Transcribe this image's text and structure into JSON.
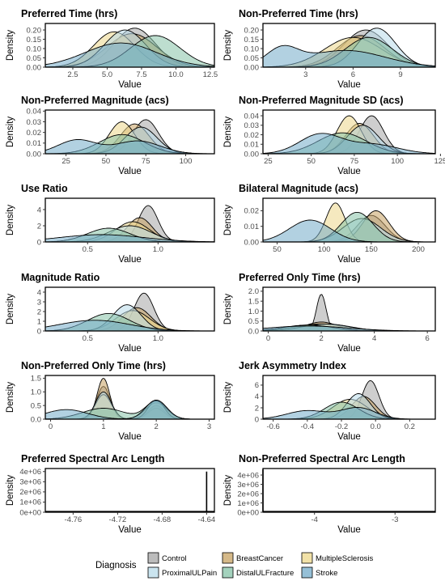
{
  "figure": {
    "legend": {
      "title": "Diagnosis",
      "placement": "bottom",
      "entries": [
        {
          "name": "Control",
          "color": "#a6a6a6"
        },
        {
          "name": "BreastCancer",
          "color": "#c7a161"
        },
        {
          "name": "MultipleSclerosis",
          "color": "#ecd78a"
        },
        {
          "name": "ProximalULPain",
          "color": "#b8dbea"
        },
        {
          "name": "DistalULFracture",
          "color": "#86c3a7"
        },
        {
          "name": "Stroke",
          "color": "#73abc9"
        }
      ]
    }
  },
  "chart_data": [
    {
      "type": "area",
      "title": "Preferred Time (hrs)",
      "xlabel": "Value",
      "ylabel": "Density",
      "xlim": [
        0.5,
        12.8
      ],
      "ylim": [
        0,
        0.235
      ],
      "xticks": [
        2.5,
        5.0,
        7.5,
        10.0,
        12.5
      ],
      "xtick_labels": [
        "2.5",
        "5.0",
        "7.5",
        "10.0",
        "12.5"
      ],
      "yticks": [
        0,
        0.05,
        0.1,
        0.15,
        0.2
      ],
      "ytick_labels": [
        "0.00",
        "0.05",
        "0.10",
        "0.15",
        "0.20"
      ],
      "series": [
        {
          "name": "Control",
          "peaks": [
            [
              7.0,
              0.21,
              1.5
            ]
          ]
        },
        {
          "name": "BreastCancer",
          "peaks": [
            [
              6.8,
              0.18,
              1.8
            ]
          ]
        },
        {
          "name": "MultipleSclerosis",
          "peaks": [
            [
              5.5,
              0.19,
              1.5
            ]
          ]
        },
        {
          "name": "ProximalULPain",
          "peaks": [
            [
              6.3,
              0.2,
              1.5
            ]
          ]
        },
        {
          "name": "DistalULFracture",
          "peaks": [
            [
              8.5,
              0.17,
              1.8
            ]
          ]
        },
        {
          "name": "Stroke",
          "peaks": [
            [
              6.0,
              0.13,
              2.6
            ]
          ]
        }
      ]
    },
    {
      "type": "area",
      "title": "Non-Preferred Time (hrs)",
      "xlabel": "Value",
      "ylabel": "Density",
      "xlim": [
        0.3,
        11.2
      ],
      "ylim": [
        0,
        0.235
      ],
      "xticks": [
        3,
        6,
        9
      ],
      "xtick_labels": [
        "3",
        "6",
        "9"
      ],
      "yticks": [
        0,
        0.05,
        0.1,
        0.15,
        0.2
      ],
      "ytick_labels": [
        "0.00",
        "0.05",
        "0.10",
        "0.15",
        "0.20"
      ],
      "series": [
        {
          "name": "Control",
          "peaks": [
            [
              6.8,
              0.2,
              1.4
            ]
          ]
        },
        {
          "name": "BreastCancer",
          "peaks": [
            [
              6.5,
              0.17,
              1.5
            ]
          ]
        },
        {
          "name": "MultipleSclerosis",
          "peaks": [
            [
              6.0,
              0.16,
              1.8
            ]
          ]
        },
        {
          "name": "ProximalULPain",
          "peaks": [
            [
              7.5,
              0.21,
              1.2
            ]
          ]
        },
        {
          "name": "DistalULFracture",
          "peaks": [
            [
              7.0,
              0.16,
              1.5
            ]
          ]
        },
        {
          "name": "Stroke",
          "peaks": [
            [
              1.5,
              0.09,
              1.0
            ],
            [
              5.5,
              0.09,
              2.5
            ]
          ]
        }
      ]
    },
    {
      "type": "area",
      "title": "Non-Preferred Magnitude (acs)",
      "xlabel": "Value",
      "ylabel": "Density",
      "xlim": [
        12,
        118
      ],
      "ylim": [
        0,
        0.041
      ],
      "xticks": [
        25,
        50,
        75,
        100
      ],
      "xtick_labels": [
        "25",
        "50",
        "75",
        "100"
      ],
      "yticks": [
        0,
        0.01,
        0.02,
        0.03,
        0.04
      ],
      "ytick_labels": [
        "0.00",
        "0.01",
        "0.02",
        "0.03",
        "0.04"
      ],
      "series": [
        {
          "name": "Control",
          "peaks": [
            [
              75,
              0.032,
              8
            ]
          ]
        },
        {
          "name": "BreastCancer",
          "peaks": [
            [
              68,
              0.028,
              9
            ]
          ]
        },
        {
          "name": "MultipleSclerosis",
          "peaks": [
            [
              60,
              0.03,
              8
            ]
          ]
        },
        {
          "name": "ProximalULPain",
          "peaks": [
            [
              72,
              0.025,
              10
            ]
          ]
        },
        {
          "name": "DistalULFracture",
          "peaks": [
            [
              60,
              0.018,
              14
            ]
          ]
        },
        {
          "name": "Stroke",
          "peaks": [
            [
              32,
              0.013,
              12
            ],
            [
              70,
              0.012,
              14
            ]
          ]
        }
      ]
    },
    {
      "type": "area",
      "title": "Non-Preferred Magnitude SD (acs)",
      "xlabel": "Value",
      "ylabel": "Density",
      "xlim": [
        22,
        122
      ],
      "ylim": [
        0,
        0.046
      ],
      "xticks": [
        25,
        50,
        75,
        100,
        125
      ],
      "xtick_labels": [
        "25",
        "50",
        "75",
        "100",
        "125"
      ],
      "yticks": [
        0,
        0.01,
        0.02,
        0.03,
        0.04
      ],
      "ytick_labels": [
        "0.00",
        "0.01",
        "0.02",
        "0.03",
        "0.04"
      ],
      "series": [
        {
          "name": "Control",
          "peaks": [
            [
              85,
              0.04,
              7
            ]
          ]
        },
        {
          "name": "BreastCancer",
          "peaks": [
            [
              78,
              0.032,
              8
            ]
          ]
        },
        {
          "name": "MultipleSclerosis",
          "peaks": [
            [
              72,
              0.04,
              7
            ]
          ]
        },
        {
          "name": "ProximalULPain",
          "peaks": [
            [
              80,
              0.03,
              9
            ]
          ]
        },
        {
          "name": "DistalULFracture",
          "peaks": [
            [
              68,
              0.022,
              14
            ]
          ]
        },
        {
          "name": "Stroke",
          "peaks": [
            [
              55,
              0.02,
              12
            ],
            [
              85,
              0.01,
              15
            ]
          ]
        }
      ]
    },
    {
      "type": "area",
      "title": "Use Ratio",
      "xlabel": "Value",
      "ylabel": "Density",
      "xlim": [
        0.2,
        1.4
      ],
      "ylim": [
        0,
        5.4
      ],
      "xticks": [
        0.5,
        1.0
      ],
      "xtick_labels": [
        "0.5",
        "1.0"
      ],
      "yticks": [
        0,
        2,
        4
      ],
      "ytick_labels": [
        "0",
        "2",
        "4"
      ],
      "series": [
        {
          "name": "Control",
          "peaks": [
            [
              0.93,
              4.5,
              0.07
            ]
          ]
        },
        {
          "name": "BreastCancer",
          "peaks": [
            [
              0.87,
              3.0,
              0.09
            ]
          ]
        },
        {
          "name": "MultipleSclerosis",
          "peaks": [
            [
              0.82,
              2.5,
              0.12
            ]
          ]
        },
        {
          "name": "ProximalULPain",
          "peaks": [
            [
              0.8,
              2.0,
              0.15
            ]
          ]
        },
        {
          "name": "DistalULFracture",
          "peaks": [
            [
              0.65,
              1.7,
              0.15
            ]
          ]
        },
        {
          "name": "Stroke",
          "peaks": [
            [
              0.6,
              0.9,
              0.3
            ]
          ]
        }
      ]
    },
    {
      "type": "area",
      "title": "Bilateral Magnitude (acs)",
      "xlabel": "Value",
      "ylabel": "Density",
      "xlim": [
        35,
        218
      ],
      "ylim": [
        0,
        0.028
      ],
      "xticks": [
        50,
        100,
        150,
        200
      ],
      "xtick_labels": [
        "50",
        "100",
        "150",
        "200"
      ],
      "yticks": [
        0,
        0.01,
        0.02
      ],
      "ytick_labels": [
        "0.00",
        "0.01",
        "0.02"
      ],
      "series": [
        {
          "name": "Control",
          "peaks": [
            [
              150,
              0.017,
              15
            ]
          ]
        },
        {
          "name": "BreastCancer",
          "peaks": [
            [
              155,
              0.02,
              14
            ]
          ]
        },
        {
          "name": "MultipleSclerosis",
          "peaks": [
            [
              112,
              0.025,
              10
            ]
          ]
        },
        {
          "name": "ProximalULPain",
          "peaks": [
            [
              140,
              0.015,
              20
            ]
          ]
        },
        {
          "name": "DistalULFracture",
          "peaks": [
            [
              135,
              0.019,
              17
            ]
          ]
        },
        {
          "name": "Stroke",
          "peaks": [
            [
              85,
              0.014,
              22
            ]
          ]
        }
      ]
    },
    {
      "type": "area",
      "title": "Magnitude Ratio",
      "xlabel": "Value",
      "ylabel": "Density",
      "xlim": [
        0.2,
        1.4
      ],
      "ylim": [
        0,
        4.5
      ],
      "xticks": [
        0.5,
        1.0
      ],
      "xtick_labels": [
        "0.5",
        "1.0"
      ],
      "yticks": [
        0,
        1,
        2,
        3,
        4
      ],
      "ytick_labels": [
        "0",
        "1",
        "2",
        "3",
        "4"
      ],
      "series": [
        {
          "name": "Control",
          "peaks": [
            [
              0.9,
              3.9,
              0.07
            ]
          ]
        },
        {
          "name": "BreastCancer",
          "peaks": [
            [
              0.85,
              2.4,
              0.1
            ]
          ]
        },
        {
          "name": "MultipleSclerosis",
          "peaks": [
            [
              0.82,
              2.1,
              0.12
            ]
          ]
        },
        {
          "name": "ProximalULPain",
          "peaks": [
            [
              0.78,
              2.7,
              0.1
            ]
          ]
        },
        {
          "name": "DistalULFracture",
          "peaks": [
            [
              0.65,
              1.8,
              0.15
            ]
          ]
        },
        {
          "name": "Stroke",
          "peaks": [
            [
              0.55,
              1.1,
              0.25
            ]
          ]
        }
      ]
    },
    {
      "type": "area",
      "title": "Preferred Only Time (hrs)",
      "xlabel": "Value",
      "ylabel": "Density",
      "xlim": [
        -0.2,
        6.3
      ],
      "ylim": [
        0,
        2.2
      ],
      "xticks": [
        0,
        2,
        4,
        6
      ],
      "xtick_labels": [
        "0",
        "2",
        "4",
        "6"
      ],
      "yticks": [
        0,
        0.5,
        1.0,
        1.5,
        2.0
      ],
      "ytick_labels": [
        "0.0",
        "0.5",
        "1.0",
        "1.5",
        "2.0"
      ],
      "series": [
        {
          "name": "Control",
          "peaks": [
            [
              2.0,
              1.85,
              0.18
            ]
          ]
        },
        {
          "name": "BreastCancer",
          "peaks": [
            [
              2.0,
              0.45,
              0.6
            ]
          ]
        },
        {
          "name": "MultipleSclerosis",
          "peaks": [
            [
              2.0,
              0.35,
              1.0
            ]
          ]
        },
        {
          "name": "ProximalULPain",
          "peaks": [
            [
              2.2,
              0.35,
              0.9
            ]
          ]
        },
        {
          "name": "DistalULFracture",
          "peaks": [
            [
              1.5,
              0.3,
              0.9
            ]
          ]
        },
        {
          "name": "Stroke",
          "peaks": [
            [
              1.5,
              0.25,
              1.5
            ]
          ]
        }
      ]
    },
    {
      "type": "area",
      "title": "Non-Preferred Only Time (hrs)",
      "xlabel": "Value",
      "ylabel": "Density",
      "xlim": [
        -0.1,
        3.1
      ],
      "ylim": [
        0,
        1.6
      ],
      "xticks": [
        0,
        1,
        2,
        3
      ],
      "xtick_labels": [
        "0",
        "1",
        "2",
        "3"
      ],
      "yticks": [
        0,
        0.5,
        1.0,
        1.5
      ],
      "ytick_labels": [
        "0.0",
        "0.5",
        "1.0",
        "1.5"
      ],
      "series": [
        {
          "name": "Control",
          "peaks": [
            [
              1.0,
              1.2,
              0.13
            ],
            [
              2.0,
              0.5,
              0.15
            ]
          ]
        },
        {
          "name": "BreastCancer",
          "peaks": [
            [
              1.0,
              1.5,
              0.12
            ],
            [
              2.0,
              0.4,
              0.15
            ]
          ]
        },
        {
          "name": "MultipleSclerosis",
          "peaks": [
            [
              1.0,
              0.9,
              0.15
            ],
            [
              2.0,
              0.6,
              0.2
            ]
          ]
        },
        {
          "name": "ProximalULPain",
          "peaks": [
            [
              1.0,
              1.0,
              0.15
            ],
            [
              2.0,
              0.7,
              0.15
            ]
          ]
        },
        {
          "name": "DistalULFracture",
          "peaks": [
            [
              1.0,
              0.4,
              0.4
            ],
            [
              2.0,
              0.65,
              0.2
            ]
          ]
        },
        {
          "name": "Stroke",
          "peaks": [
            [
              0.3,
              0.35,
              0.4
            ],
            [
              2.0,
              0.7,
              0.2
            ]
          ]
        }
      ]
    },
    {
      "type": "area",
      "title": "Jerk Asymmetry Index",
      "xlabel": "Value",
      "ylabel": "Density",
      "xlim": [
        -0.66,
        0.35
      ],
      "ylim": [
        0,
        7.7
      ],
      "xticks": [
        -0.6,
        -0.4,
        -0.2,
        0.0,
        0.2
      ],
      "xtick_labels": [
        "-0.6",
        "-0.4",
        "-0.2",
        "0.0",
        "0.2"
      ],
      "yticks": [
        0,
        2,
        4,
        6
      ],
      "ytick_labels": [
        "0",
        "2",
        "4",
        "6"
      ],
      "series": [
        {
          "name": "Control",
          "peaks": [
            [
              -0.03,
              6.8,
              0.05
            ]
          ]
        },
        {
          "name": "BreastCancer",
          "peaks": [
            [
              -0.07,
              4.0,
              0.07
            ]
          ]
        },
        {
          "name": "MultipleSclerosis",
          "peaks": [
            [
              -0.15,
              3.5,
              0.1
            ]
          ]
        },
        {
          "name": "ProximalULPain",
          "peaks": [
            [
              -0.1,
              4.5,
              0.07
            ]
          ]
        },
        {
          "name": "DistalULFracture",
          "peaks": [
            [
              -0.2,
              3.0,
              0.1
            ]
          ]
        },
        {
          "name": "Stroke",
          "peaks": [
            [
              -0.4,
              1.5,
              0.12
            ],
            [
              -0.1,
              2.0,
              0.1
            ]
          ]
        }
      ]
    },
    {
      "type": "area",
      "title": "Preferred Spectral Arc Length",
      "xlabel": "Value",
      "ylabel": "Density",
      "xlim": [
        -4.785,
        -4.633
      ],
      "ylim": [
        0,
        4300000
      ],
      "xticks": [
        -4.76,
        -4.72,
        -4.68,
        -4.64
      ],
      "xtick_labels": [
        "-4.76",
        "-4.72",
        "-4.68",
        "-4.64"
      ],
      "yticks": [
        0,
        1000000,
        2000000,
        3000000,
        4000000
      ],
      "ytick_labels": [
        "0e+00",
        "1e+06",
        "2e+06",
        "3e+06",
        "4e+06"
      ],
      "spike": {
        "x": -4.64,
        "y": 4000000
      }
    },
    {
      "type": "area",
      "title": "Non-Preferred Spectral Arc Length",
      "xlabel": "Value",
      "ylabel": "Density",
      "xlim": [
        -4.64,
        -2.5
      ],
      "ylim": [
        0,
        4700000
      ],
      "xticks": [
        -4,
        -3
      ],
      "xtick_labels": [
        "-4",
        "-3"
      ],
      "yticks": [
        0,
        1000000,
        2000000,
        3000000,
        4000000
      ],
      "ytick_labels": [
        "0e+00",
        "1e+06",
        "2e+06",
        "3e+06",
        "4e+06"
      ],
      "spike": {
        "x": -4.64,
        "y": 4600000
      }
    }
  ]
}
